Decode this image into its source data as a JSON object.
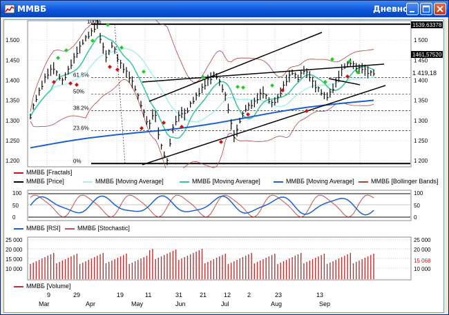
{
  "window": {
    "title": "ММВБ",
    "mode": "Дневной"
  },
  "titlebar_buttons": {
    "minimize": "minimize",
    "maximize": "maximize",
    "close": "close"
  },
  "price_pane": {
    "y_ticks": [
      "1 500",
      "1 450",
      "1 400",
      "1 350",
      "1 300",
      "1 250",
      "1 200"
    ],
    "left_ticks": [
      "1.500",
      "1.450",
      "1.400",
      "1.350",
      "1.300",
      "1.250",
      "1.200"
    ],
    "price_labels": {
      "high": "1539,63378",
      "mid": "1461,57520",
      "last": "1 419,18"
    },
    "fib_labels": [
      "100%",
      "61.8%",
      "50%",
      "38.2%",
      "23.6%",
      "0%"
    ],
    "legend": [
      {
        "label": "ММВБ [Fractals]",
        "color": "#d01010"
      },
      {
        "label": "ММВБ [Price]",
        "color": "#000000"
      },
      {
        "label": "ММВБ [Moving Average]",
        "color": "#a6f0f0"
      },
      {
        "label": "ММВБ [Moving Average]",
        "color": "#30c890"
      },
      {
        "label": "ММВБ [Moving Average]",
        "color": "#1a5fd0"
      },
      {
        "label": "ММВБ [Bollinger Bands]",
        "color": "#b04040"
      }
    ]
  },
  "osc_pane": {
    "left_ticks": [
      "100",
      "50",
      "0"
    ],
    "right_ticks": [
      "100",
      "50",
      "0"
    ],
    "legend": [
      {
        "label": "ММВБ [RSI]",
        "color": "#1a5fd0"
      },
      {
        "label": "ММВБ [Stochastic]",
        "color": "#c05050"
      }
    ]
  },
  "volume_pane": {
    "left_ticks": [
      "25 000",
      "20 000",
      "15 000",
      "10 000"
    ],
    "right_ticks": [
      "25 000",
      "20 000",
      "15 068",
      "10 000"
    ],
    "legend": [
      {
        "label": "ММВБ [Volume]",
        "color": "#c03030"
      }
    ]
  },
  "date_axis": {
    "days": [
      "9",
      "29",
      "19",
      "11",
      "31",
      "21",
      "12",
      "2",
      "23",
      "13"
    ],
    "months": [
      "Mar",
      "Apr",
      "May",
      "Jun",
      "Jul",
      "Aug",
      "Sep"
    ]
  },
  "chart_data": {
    "type": "line",
    "title": "ММВБ",
    "ylim": [
      1190,
      1545
    ],
    "fib_levels": [
      {
        "label": "100%",
        "value": 1539.6
      },
      {
        "label": "61.8%",
        "value": 1407
      },
      {
        "label": "50%",
        "value": 1366
      },
      {
        "label": "38.2%",
        "value": 1325
      },
      {
        "label": "23.6%",
        "value": 1275
      },
      {
        "label": "0%",
        "value": 1193
      }
    ],
    "price_series": [
      1310,
      1335,
      1355,
      1372,
      1388,
      1405,
      1416,
      1425,
      1430,
      1418,
      1408,
      1398,
      1410,
      1425,
      1440,
      1455,
      1470,
      1482,
      1495,
      1505,
      1512,
      1520,
      1530,
      1540,
      1505,
      1480,
      1460,
      1470,
      1488,
      1475,
      1455,
      1440,
      1430,
      1420,
      1408,
      1395,
      1380,
      1360,
      1340,
      1318,
      1300,
      1290,
      1315,
      1310,
      1268,
      1235,
      1215,
      1198,
      1245,
      1280,
      1300,
      1310,
      1320,
      1315,
      1325,
      1340,
      1350,
      1360,
      1370,
      1380,
      1390,
      1400,
      1405,
      1415,
      1410,
      1395,
      1380,
      1360,
      1330,
      1290,
      1260,
      1275,
      1300,
      1315,
      1330,
      1335,
      1340,
      1345,
      1355,
      1365,
      1370,
      1360,
      1350,
      1342,
      1348,
      1355,
      1370,
      1385,
      1400,
      1410,
      1420,
      1412,
      1405,
      1415,
      1425,
      1418,
      1410,
      1395,
      1385,
      1378,
      1370,
      1362,
      1360,
      1368,
      1380,
      1395,
      1410,
      1425,
      1435,
      1440,
      1445,
      1438,
      1432,
      1428,
      1430,
      1425,
      1420,
      1418,
      1419
    ]
  }
}
